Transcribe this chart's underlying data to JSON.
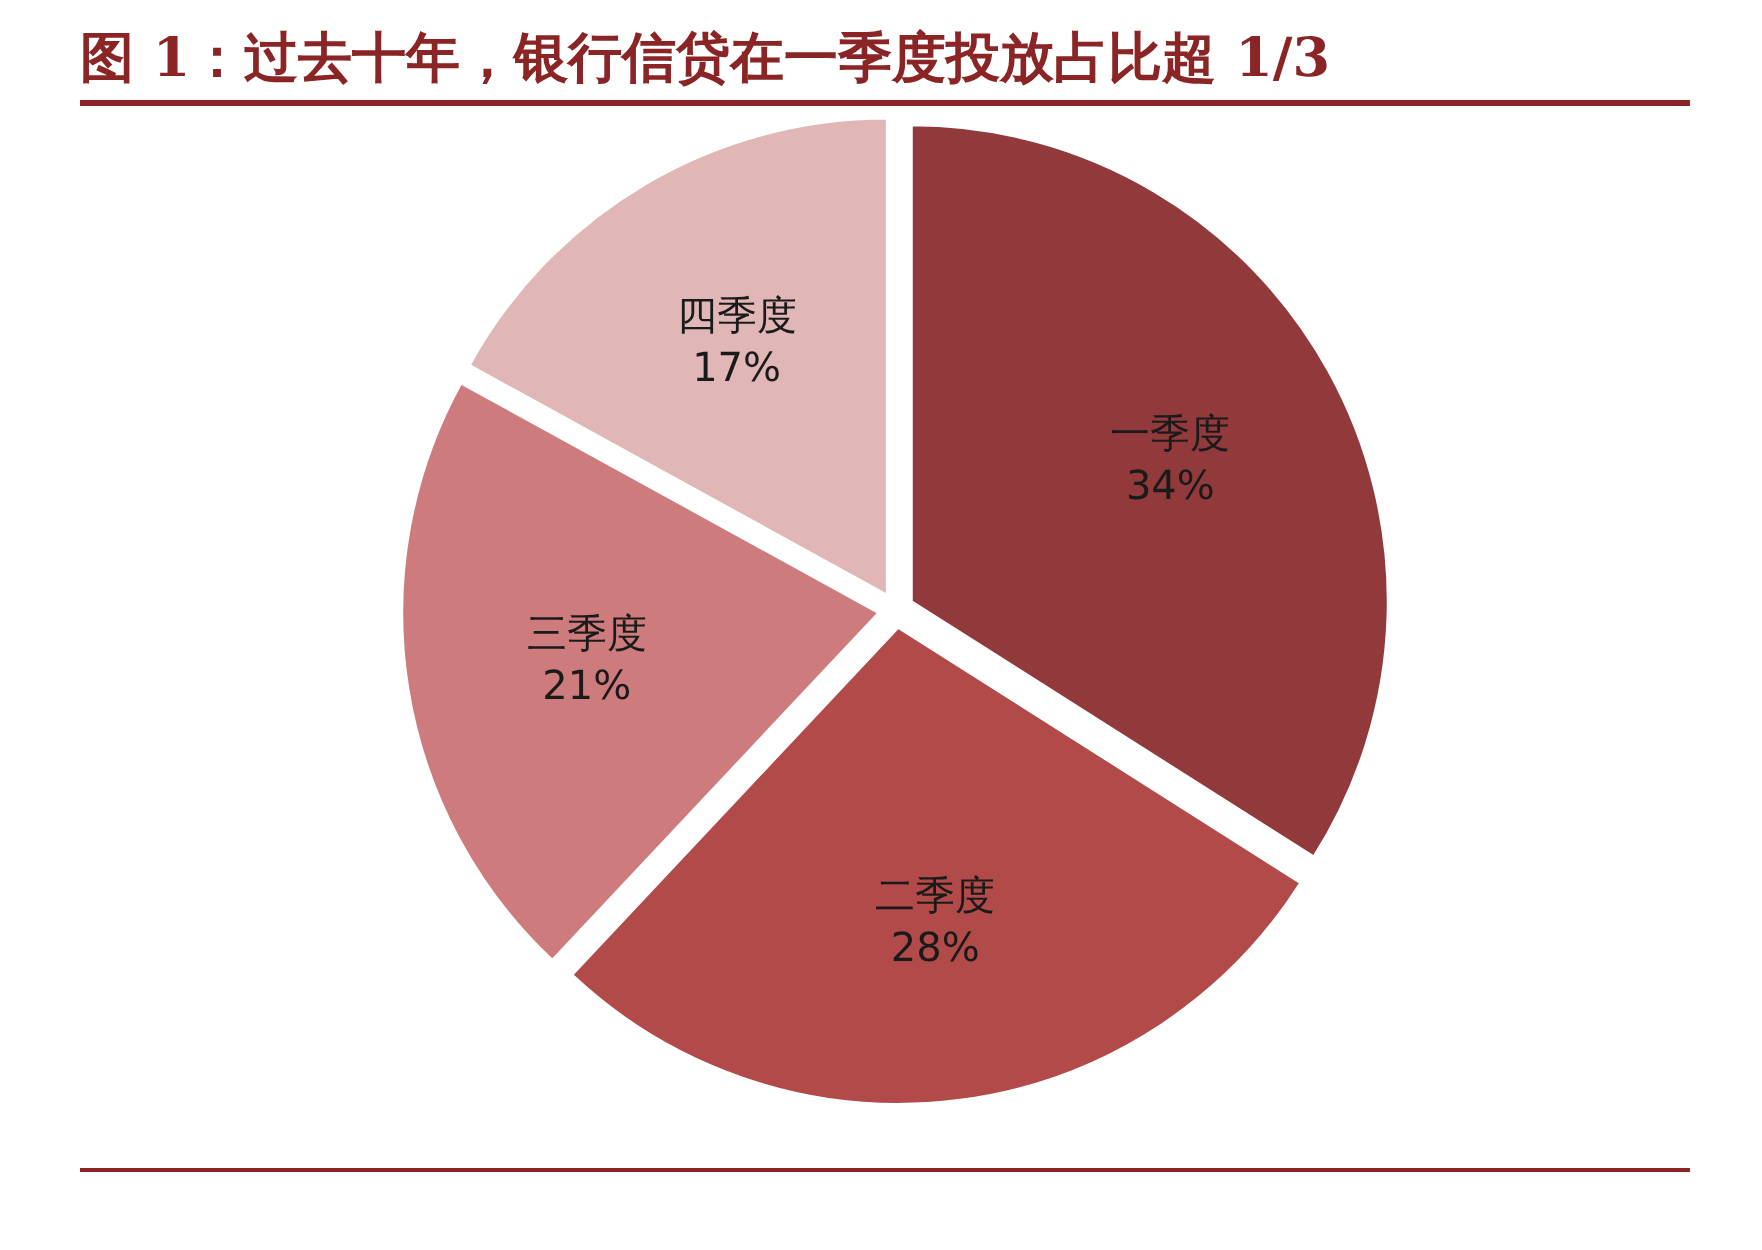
{
  "chart_data": {
    "type": "pie",
    "title": "图 1：过去十年，银行信贷在一季度投放占比超 1/3",
    "categories": [
      "一季度",
      "二季度",
      "三季度",
      "四季度"
    ],
    "values": [
      34,
      28,
      21,
      17
    ],
    "colors": [
      "#923a3b",
      "#b24a4a",
      "#cd7b7c",
      "#e0b6b7"
    ],
    "value_labels": [
      "34%",
      "28%",
      "21%",
      "17%"
    ]
  }
}
